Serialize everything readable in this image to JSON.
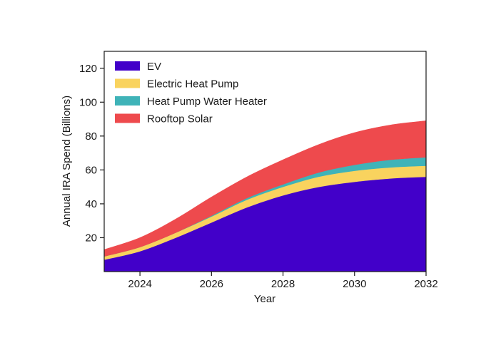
{
  "chart_data": {
    "type": "area",
    "stacked": true,
    "title": "",
    "xlabel": "Year",
    "ylabel": "Annual IRA Spend (Billions)",
    "xlim": [
      2023,
      2032
    ],
    "ylim": [
      0,
      130
    ],
    "xticks": [
      2024,
      2026,
      2028,
      2030,
      2032
    ],
    "yticks": [
      20,
      40,
      60,
      80,
      100,
      120
    ],
    "grid": false,
    "legend_position": "top-left",
    "x": [
      2023,
      2024,
      2025,
      2026,
      2027,
      2028,
      2029,
      2030,
      2031,
      2032
    ],
    "series": [
      {
        "name": "EV",
        "color": "#4200c9",
        "values": [
          7,
          12,
          20,
          29,
          38,
          45,
          50,
          53,
          55,
          56
        ]
      },
      {
        "name": "Electric Heat Pump",
        "color": "#f9d35e",
        "values": [
          2,
          2.5,
          3,
          3.5,
          4.5,
          5,
          6,
          6.5,
          6.5,
          6.5
        ]
      },
      {
        "name": "Heat Pump Water Heater",
        "color": "#3fb3b8",
        "values": [
          0,
          0,
          0,
          0.5,
          1,
          1.5,
          2.5,
          3.5,
          4.5,
          5
        ]
      },
      {
        "name": "Rooftop Solar",
        "color": "#ee4a4d",
        "values": [
          4,
          5.5,
          8,
          11,
          12.5,
          14.5,
          16.5,
          19,
          20.5,
          21.5
        ]
      }
    ]
  }
}
